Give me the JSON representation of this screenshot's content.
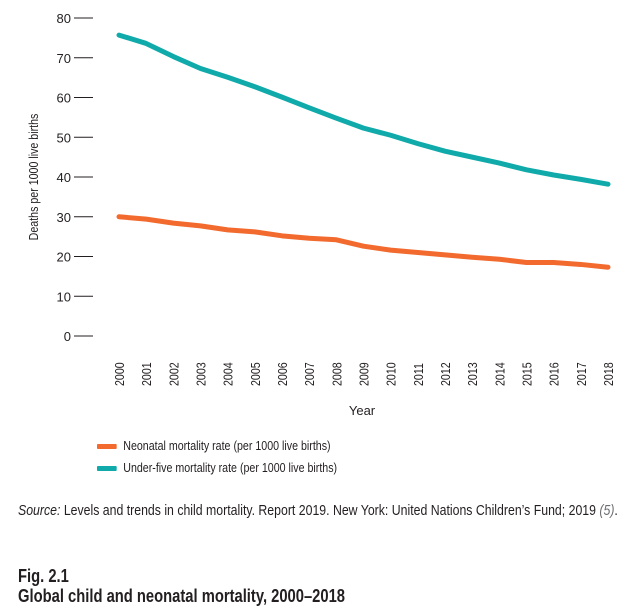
{
  "chart_data": {
    "type": "line",
    "title": "",
    "xlabel": "Year",
    "ylabel": "Deaths per 1000 live births",
    "ylim": [
      0,
      80
    ],
    "yticks": [
      0,
      10,
      20,
      30,
      40,
      50,
      60,
      70,
      80
    ],
    "grid": false,
    "legend_position": "bottom-left",
    "x": [
      "2000",
      "2001",
      "2002",
      "2003",
      "2004",
      "2005",
      "2006",
      "2007",
      "2008",
      "2009",
      "2010",
      "2011",
      "2012",
      "2013",
      "2014",
      "2015",
      "2016",
      "2017",
      "2018"
    ],
    "series": [
      {
        "name": "Neonatal mortality rate (per 1000 live births)",
        "color": "#f26a2e",
        "values": [
          30.0,
          29.4,
          28.4,
          27.7,
          26.7,
          26.2,
          25.2,
          24.6,
          24.2,
          22.6,
          21.6,
          21.0,
          20.4,
          19.8,
          19.3,
          18.5,
          18.5,
          18.0,
          17.3
        ]
      },
      {
        "name": "Under-five mortality rate (per 1000 live births)",
        "color": "#10aaaa",
        "values": [
          75.7,
          73.6,
          70.3,
          67.3,
          65.1,
          62.7,
          60.1,
          57.4,
          54.8,
          52.3,
          50.5,
          48.4,
          46.5,
          45.0,
          43.5,
          41.8,
          40.5,
          39.4,
          38.2
        ]
      }
    ]
  },
  "source": {
    "label": "Source:",
    "text": " Levels and trends in child mortality. Report 2019. New York: United Nations Children’s Fund; 2019 ",
    "ref": "(5)",
    "end": "."
  },
  "figure": {
    "number": "Fig. 2.1",
    "caption": "Global child and neonatal mortality, 2000–2018"
  }
}
